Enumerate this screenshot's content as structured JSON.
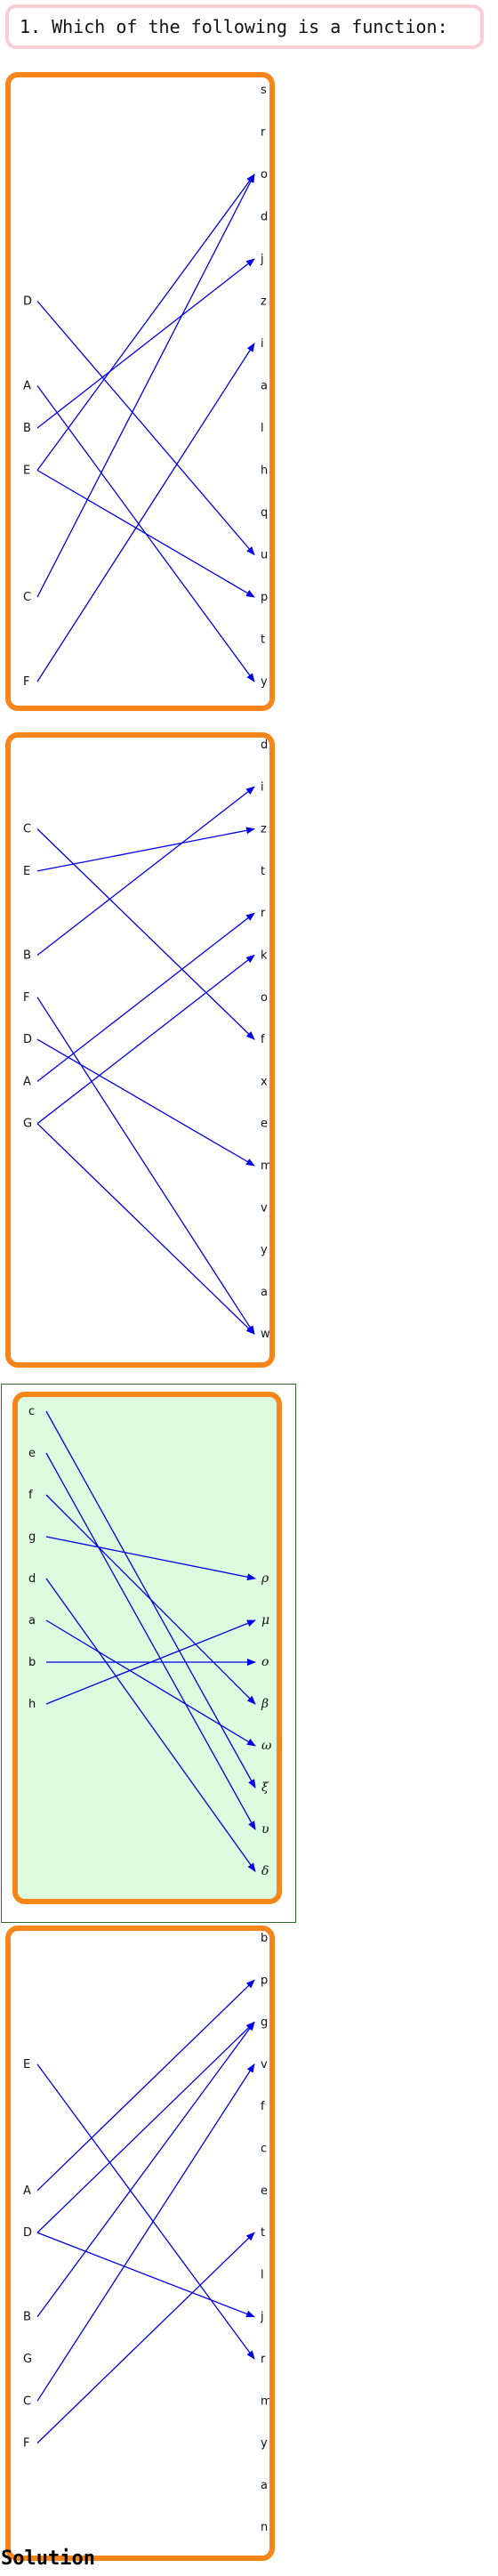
{
  "question": "1. Which of the following is a function:",
  "solution_label": "Solution",
  "colors": {
    "arrow": "#0000e6",
    "panel_border": "#f7861a",
    "highlight_fill": "#ddfcdf",
    "question_border": "#f8cfd6"
  },
  "options": [
    {
      "highlighted": false,
      "domain": [
        "D",
        "A",
        "B",
        "E",
        "C",
        "F"
      ],
      "codomain": [
        "s",
        "r",
        "o",
        "d",
        "j",
        "z",
        "i",
        "a",
        "l",
        "h",
        "q",
        "u",
        "p",
        "t",
        "y"
      ],
      "arrows": [
        [
          "D",
          "u"
        ],
        [
          "A",
          "y"
        ],
        [
          "B",
          "j"
        ],
        [
          "E",
          "o"
        ],
        [
          "E",
          "p"
        ],
        [
          "C",
          "o"
        ],
        [
          "F",
          "i"
        ]
      ]
    },
    {
      "highlighted": false,
      "domain": [
        "C",
        "E",
        "B",
        "F",
        "D",
        "A",
        "G"
      ],
      "codomain": [
        "d",
        "i",
        "z",
        "t",
        "r",
        "k",
        "o",
        "f",
        "x",
        "e",
        "m",
        "v",
        "y",
        "a",
        "w"
      ],
      "arrows": [
        [
          "C",
          "f"
        ],
        [
          "E",
          "z"
        ],
        [
          "B",
          "i"
        ],
        [
          "F",
          "w"
        ],
        [
          "D",
          "m"
        ],
        [
          "A",
          "r"
        ],
        [
          "G",
          "k"
        ],
        [
          "G",
          "w"
        ]
      ]
    },
    {
      "highlighted": true,
      "domain": [
        "c",
        "e",
        "f",
        "g",
        "d",
        "a",
        "b",
        "h"
      ],
      "codomain": [
        "ρ",
        "μ",
        "o",
        "β",
        "ω",
        "ξ",
        "υ",
        "δ"
      ],
      "arrows": [
        [
          "c",
          "ξ"
        ],
        [
          "e",
          "υ"
        ],
        [
          "f",
          "β"
        ],
        [
          "g",
          "ρ"
        ],
        [
          "d",
          "δ"
        ],
        [
          "a",
          "ω"
        ],
        [
          "b",
          "o"
        ],
        [
          "h",
          "μ"
        ]
      ]
    },
    {
      "highlighted": false,
      "domain": [
        "E",
        "A",
        "D",
        "B",
        "G",
        "C",
        "F"
      ],
      "codomain": [
        "b",
        "p",
        "g",
        "v",
        "f",
        "c",
        "e",
        "t",
        "l",
        "j",
        "r",
        "m",
        "y",
        "a",
        "n"
      ],
      "arrows": [
        [
          "E",
          "r"
        ],
        [
          "A",
          "p"
        ],
        [
          "D",
          "g"
        ],
        [
          "D",
          "j"
        ],
        [
          "B",
          "g"
        ],
        [
          "C",
          "v"
        ],
        [
          "F",
          "t"
        ]
      ]
    }
  ]
}
